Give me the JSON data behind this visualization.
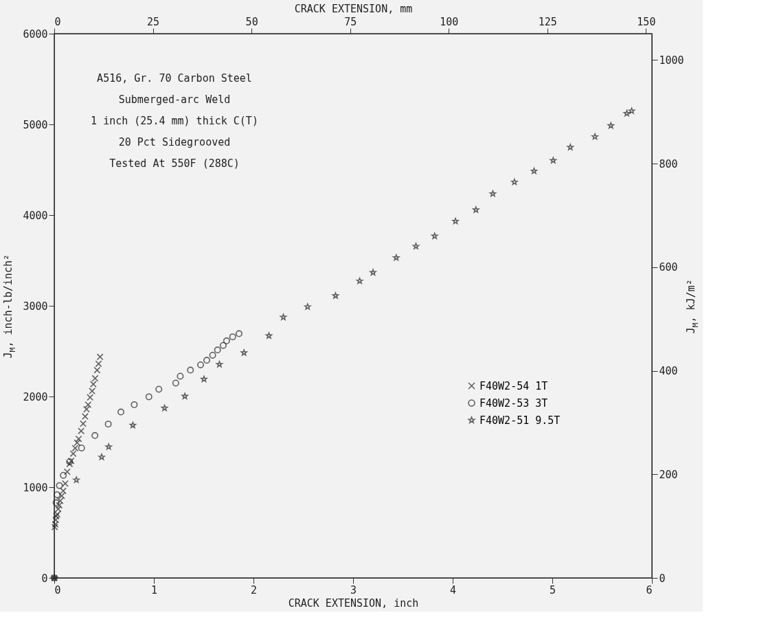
{
  "chart_data": {
    "type": "scatter",
    "xlabel": "CRACK EXTENSION, inch",
    "ylabel": "J$_{M}$, inch-lb/inch²",
    "x2label": "CRACK EXTENSION, mm",
    "y2label": "J$_{M}$, kJ/m²",
    "xlim": [
      0,
      6
    ],
    "xticks": [
      0,
      1,
      2,
      3,
      4,
      5,
      6
    ],
    "ylim": [
      0,
      6000
    ],
    "yticks": [
      0,
      {
        "value": 1000,
        "label": "1000"
      },
      {
        "value": 2000,
        "label": "2000"
      },
      {
        "value": 3000,
        "label": "3000"
      },
      {
        "value": 4000,
        "label": "4000"
      },
      {
        "value": 5000,
        "label": "5000"
      },
      {
        "value": 6000,
        "label": "6000"
      }
    ],
    "x2lim": [
      0,
      151.5
    ],
    "x2ticks": [
      0,
      25,
      50,
      75,
      100,
      125,
      150
    ],
    "y2lim": [
      0,
      1051
    ],
    "y2ticks": [
      0,
      200,
      400,
      600,
      800,
      {
        "value": 1000,
        "label": "1000"
      }
    ],
    "grid": false,
    "legend": "right",
    "annotations": [
      "A516, Gr. 70 Carbon Steel",
      "Submerged-arc Weld",
      "1 inch (25.4 mm) thick C(T)",
      "20 Pct Sidegrooved",
      "Tested At 550F (288C)"
    ],
    "series": [
      {
        "name": "F40W2-54 1T",
        "color": "#222222",
        "marker": "cross",
        "x": [
          0,
          0.005,
          0.01,
          0.015,
          0.02,
          0.03,
          0.04,
          0.05,
          0.06,
          0.075,
          0.09,
          0.11,
          0.13,
          0.154,
          0.17,
          0.19,
          0.21,
          0.23,
          0.245,
          0.27,
          0.29,
          0.31,
          0.324,
          0.34,
          0.36,
          0.38,
          0.392,
          0.41,
          0.43,
          0.445,
          0.46
        ],
        "values": [
          0,
          560,
          590,
          640,
          680,
          700,
          760,
          800,
          850,
          905,
          960,
          1040,
          1170,
          1256,
          1290,
          1370,
          1430,
          1490,
          1533,
          1620,
          1700,
          1780,
          1859,
          1910,
          1990,
          2060,
          2136,
          2200,
          2290,
          2360,
          2437
        ]
      },
      {
        "name": "F40W2-53 3T",
        "color": "#222222",
        "marker": "circle",
        "x": [
          0,
          0.018,
          0.029,
          0.052,
          0.091,
          0.154,
          0.274,
          0.408,
          0.542,
          0.669,
          0.803,
          0.95,
          1.05,
          1.22,
          1.265,
          1.367,
          1.469,
          1.531,
          1.59,
          1.639,
          1.696,
          1.73,
          1.791,
          1.855
        ],
        "values": [
          0,
          829,
          917,
          1018,
          1131,
          1281,
          1432,
          1570,
          1696,
          1829,
          1910,
          1997,
          2080,
          2148,
          2224,
          2291,
          2349,
          2399,
          2455,
          2513,
          2563,
          2613,
          2658,
          2693
        ]
      },
      {
        "name": "F40W2-51 9.5T",
        "color": "#222222",
        "marker": "star",
        "x": [
          0,
          0.222,
          0.476,
          0.546,
          0.789,
          1.107,
          1.311,
          1.503,
          1.658,
          1.905,
          2.155,
          2.3,
          2.543,
          2.824,
          3.066,
          3.2,
          3.433,
          3.631,
          3.819,
          4.028,
          4.233,
          4.403,
          4.62,
          4.817,
          5.009,
          5.181,
          5.428,
          5.588,
          5.748,
          5.797
        ],
        "values": [
          0,
          1080,
          1332,
          1445,
          1683,
          1872,
          2003,
          2191,
          2354,
          2482,
          2670,
          2874,
          2989,
          3111,
          3273,
          3367,
          3530,
          3656,
          3768,
          3932,
          4058,
          4235,
          4364,
          4485,
          4602,
          4747,
          4864,
          4986,
          5121,
          5148
        ]
      }
    ]
  }
}
